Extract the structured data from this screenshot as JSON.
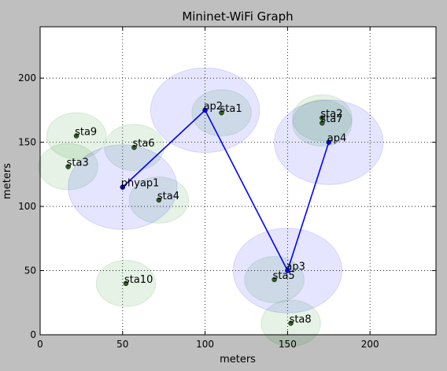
{
  "chart_data": {
    "type": "scatter",
    "title": "Mininet-WiFi Graph",
    "xlabel": "meters",
    "ylabel": "meters",
    "xlim": [
      0,
      240
    ],
    "ylim": [
      0,
      240
    ],
    "xticks": [
      0,
      50,
      100,
      150,
      200
    ],
    "yticks": [
      0,
      50,
      100,
      150,
      200
    ],
    "grid": true,
    "colors": {
      "ap_range": "#0000ff",
      "sta_range": "#008000",
      "link": "#0000ff",
      "ap_marker": "#0000ff",
      "sta_marker": "#2f5f1f"
    },
    "access_points": [
      {
        "name": "phyap1",
        "x": 50,
        "y": 115,
        "range": 33
      },
      {
        "name": "ap2",
        "x": 100,
        "y": 175,
        "range": 33
      },
      {
        "name": "ap3",
        "x": 150,
        "y": 50,
        "range": 33
      },
      {
        "name": "ap4",
        "x": 175,
        "y": 150,
        "range": 33
      }
    ],
    "stations": [
      {
        "name": "sta1",
        "x": 110,
        "y": 173,
        "range": 18
      },
      {
        "name": "sta2",
        "x": 171,
        "y": 169,
        "range": 18
      },
      {
        "name": "sta7",
        "x": 171,
        "y": 165,
        "range": 18
      },
      {
        "name": "sta9",
        "x": 22,
        "y": 155,
        "range": 18
      },
      {
        "name": "sta6",
        "x": 57,
        "y": 146,
        "range": 18
      },
      {
        "name": "sta3",
        "x": 17,
        "y": 131,
        "range": 18
      },
      {
        "name": "sta4",
        "x": 72,
        "y": 105,
        "range": 18
      },
      {
        "name": "sta5",
        "x": 142,
        "y": 43,
        "range": 18
      },
      {
        "name": "sta10",
        "x": 52,
        "y": 40,
        "range": 18
      },
      {
        "name": "sta8",
        "x": 152,
        "y": 9,
        "range": 18
      }
    ],
    "links": [
      [
        "phyap1",
        "ap2"
      ],
      [
        "ap2",
        "ap3"
      ],
      [
        "ap3",
        "ap4"
      ]
    ]
  }
}
